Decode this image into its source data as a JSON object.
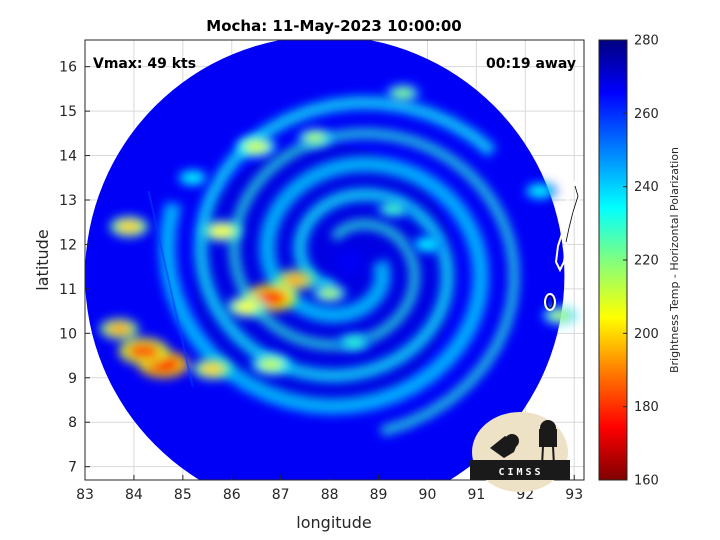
{
  "chart_data": {
    "type": "heatmap",
    "title": "Mocha: 11-May-2023 10:00:00",
    "xlabel": "longitude",
    "ylabel": "latitude",
    "xlim": [
      83,
      93.2
    ],
    "ylim": [
      6.7,
      16.6
    ],
    "x_ticks": [
      "83",
      "84",
      "85",
      "86",
      "87",
      "88",
      "89",
      "90",
      "91",
      "92",
      "93"
    ],
    "y_ticks": [
      "7",
      "8",
      "9",
      "10",
      "11",
      "12",
      "13",
      "14",
      "15",
      "16"
    ],
    "grid": true,
    "annotations": {
      "vmax": "Vmax: 49 kts",
      "time_away": "00:19 away"
    },
    "colorbar": {
      "label": "Brightness Temp - Horizontal Polarization",
      "range": [
        160,
        280
      ],
      "ticks": [
        "160",
        "180",
        "200",
        "220",
        "240",
        "260",
        "280"
      ]
    },
    "swath_center": [
      87.9,
      11.3
    ],
    "background_value": 266,
    "storm_center": [
      88.4,
      11.6
    ],
    "features": [
      {
        "kind": "rainband",
        "lon": 84.6,
        "lat": 9.3,
        "value": 175
      },
      {
        "kind": "rainband",
        "lon": 84.2,
        "lat": 9.6,
        "value": 185
      },
      {
        "kind": "rainband",
        "lon": 85.6,
        "lat": 9.2,
        "value": 200
      },
      {
        "kind": "rainband",
        "lon": 83.7,
        "lat": 10.1,
        "value": 195
      },
      {
        "kind": "rainband",
        "lon": 86.8,
        "lat": 9.3,
        "value": 212
      },
      {
        "kind": "rainband",
        "lon": 88.5,
        "lat": 9.8,
        "value": 230
      },
      {
        "kind": "eyewall",
        "lon": 86.8,
        "lat": 10.8,
        "value": 180
      },
      {
        "kind": "eyewall",
        "lon": 87.3,
        "lat": 11.2,
        "value": 195
      },
      {
        "kind": "eyewall",
        "lon": 86.3,
        "lat": 10.6,
        "value": 205
      },
      {
        "kind": "eyewall",
        "lon": 88.0,
        "lat": 10.9,
        "value": 215
      },
      {
        "kind": "rainband",
        "lon": 85.8,
        "lat": 12.3,
        "value": 205
      },
      {
        "kind": "rainband",
        "lon": 86.5,
        "lat": 14.2,
        "value": 210
      },
      {
        "kind": "rainband",
        "lon": 87.7,
        "lat": 14.4,
        "value": 215
      },
      {
        "kind": "rainband",
        "lon": 89.5,
        "lat": 15.4,
        "value": 220
      },
      {
        "kind": "rainband",
        "lon": 89.3,
        "lat": 12.8,
        "value": 228
      },
      {
        "kind": "rainband",
        "lon": 90.0,
        "lat": 12.0,
        "value": 235
      },
      {
        "kind": "rainband",
        "lon": 83.9,
        "lat": 12.4,
        "value": 200
      },
      {
        "kind": "rainband",
        "lon": 85.2,
        "lat": 13.5,
        "value": 235
      },
      {
        "kind": "rainband",
        "lon": 92.7,
        "lat": 10.4,
        "value": 215
      },
      {
        "kind": "rainband",
        "lon": 92.3,
        "lat": 13.2,
        "value": 235
      }
    ],
    "coastline": "white outline of Andaman Islands near lon 92.5-93.0, lat 10.5-13.3"
  },
  "logo": {
    "text": "CIMSS",
    "name": "CIMSS"
  },
  "colors": {
    "colormap": [
      "#7f0000",
      "#ff0000",
      "#ff8000",
      "#ffff00",
      "#80ff80",
      "#00ffff",
      "#0080ff",
      "#0000ff",
      "#000080"
    ],
    "grid": "#d9d9d9"
  }
}
